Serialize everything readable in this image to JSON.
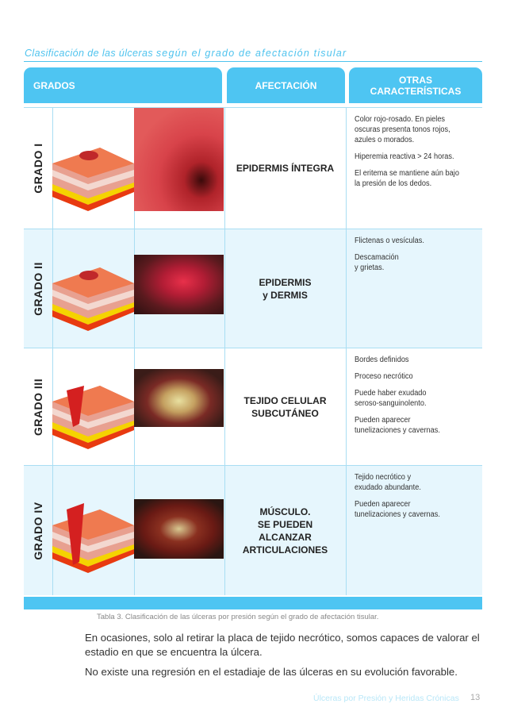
{
  "title": {
    "part1": "Clasificación de las úlceras",
    "part2": "según el grado de afectación tisular"
  },
  "headers": {
    "grados": "GRADOS",
    "afectacion": "AFECTACIÓN",
    "otras_line1": "OTRAS",
    "otras_line2": "CARACTERÍSTICAS"
  },
  "rows": [
    {
      "grade": "GRADO I",
      "afectacion": "EPIDERMIS ÍNTEGRA",
      "other": [
        "Color rojo-rosado. En pieles\noscuras presenta tonos rojos,\nazules o morados.",
        "Hiperemia reactiva > 24 horas.",
        "El eritema se mantiene aún bajo\nla presión de los dedos."
      ]
    },
    {
      "grade": "GRADO II",
      "afectacion": "EPIDERMIS\ny DERMIS",
      "other": [
        "Flictenas o vesículas.",
        "Descamación\ny grietas."
      ]
    },
    {
      "grade": "GRADO III",
      "afectacion": "TEJIDO CELULAR\nSUBCUTÁNEO",
      "other": [
        "Bordes definidos",
        "Proceso necrótico",
        "Puede haber exudado\nseroso-sanguinolento.",
        "Pueden aparecer\ntunelizaciones y cavernas."
      ]
    },
    {
      "grade": "GRADO IV",
      "afectacion": "MÚSCULO.\nSE PUEDEN\nALCANZAR\nARTICULACIONES",
      "other": [
        "Tejido necrótico y\nexudado abundante.",
        "Pueden aparecer\ntunelizaciones y cavernas."
      ]
    }
  ],
  "caption": "Tabla 3. Clasificación de las úlceras por presión según el grado de afectación tisular.",
  "paragraphs": [
    "En ocasiones, solo al retirar la placa de tejido necrótico, somos capaces de valorar el estadio en que se encuentra la úlcera.",
    "No existe una regresión en el estadiaje de las úlceras en su evolución favorable."
  ],
  "footer": {
    "book_title": "Úlceras por Presión y Heridas Crónicas",
    "page": "13"
  },
  "colors": {
    "accent": "#4ec5f2",
    "row_alt": "#e6f6fd"
  }
}
